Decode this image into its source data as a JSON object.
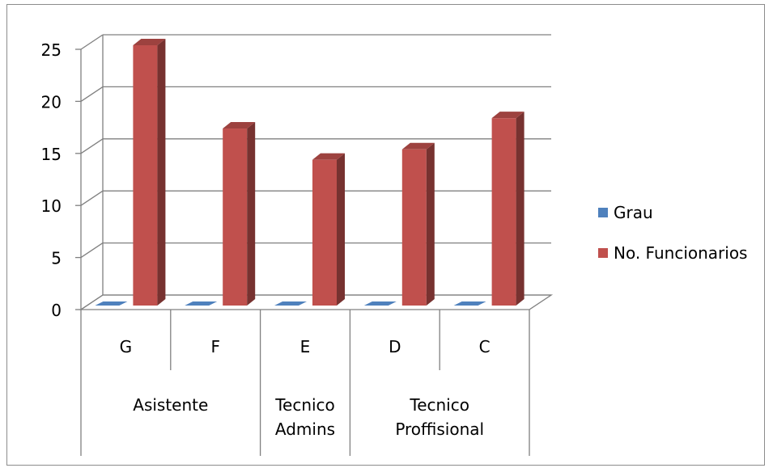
{
  "chart_data": {
    "type": "bar",
    "style": "3d-clustered-column",
    "categories": [
      "G",
      "F",
      "E",
      "D",
      "C"
    ],
    "groups": [
      {
        "label_lines": [
          "Asistente"
        ],
        "span": [
          0,
          1
        ]
      },
      {
        "label_lines": [
          "Tecnico",
          "Admins"
        ],
        "span": [
          2,
          2
        ]
      },
      {
        "label_lines": [
          "Tecnico",
          "Proffisional"
        ],
        "span": [
          3,
          4
        ]
      }
    ],
    "series": [
      {
        "name": "Grau",
        "values": [
          0,
          0,
          0,
          0,
          0
        ],
        "color": "#4f81bd"
      },
      {
        "name": "No. Funcionarios",
        "values": [
          25,
          17,
          14,
          15,
          18
        ],
        "color": "#c0504d"
      }
    ],
    "ylim": [
      0,
      25
    ],
    "yticks": [
      "0",
      "5",
      "10",
      "15",
      "20",
      "25"
    ],
    "grid": true,
    "legend": "right",
    "title": "",
    "xlabel": "",
    "ylabel": ""
  }
}
